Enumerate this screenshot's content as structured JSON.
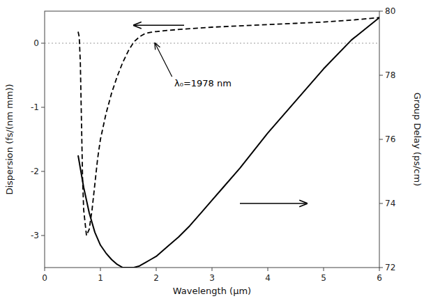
{
  "chart_data": {
    "type": "line",
    "x_label": "Wavelength (μm)",
    "y_label": "Dispersion (fs/(nm mm))",
    "y2_label": "Group Delay (ps/cm)",
    "xlim": [
      0,
      6
    ],
    "ylim": [
      -3.5,
      0.5
    ],
    "y2lim": [
      72,
      80
    ],
    "xticks": [
      0,
      1,
      2,
      3,
      4,
      5,
      6
    ],
    "yticks": [
      -3,
      -2,
      -1,
      0
    ],
    "y2ticks": [
      72,
      74,
      76,
      78,
      80
    ],
    "grid": false,
    "series": [
      {
        "color": "#000000",
        "line_style": "dashed",
        "x": [
          0.6,
          0.62,
          0.64,
          0.66,
          0.68,
          0.7,
          0.75,
          0.8,
          0.85,
          0.9,
          0.95,
          1.0,
          1.1,
          1.2,
          1.3,
          1.4,
          1.5,
          1.6,
          1.7,
          1.8,
          1.9,
          1.978,
          2.0,
          2.2,
          2.5,
          3.0,
          3.5,
          4.0,
          4.5,
          5.0,
          5.5,
          6.0
        ],
        "values": [
          0.18,
          0.1,
          -0.3,
          -1.2,
          -2.1,
          -2.6,
          -3.0,
          -2.9,
          -2.6,
          -2.2,
          -1.8,
          -1.5,
          -1.1,
          -0.78,
          -0.52,
          -0.3,
          -0.12,
          0.02,
          0.1,
          0.15,
          0.17,
          0.18,
          0.18,
          0.2,
          0.22,
          0.25,
          0.27,
          0.29,
          0.31,
          0.33,
          0.36,
          0.4
        ]
      },
      {
        "color": "#000000",
        "line_style": "solid",
        "axis": "y2",
        "x": [
          0.6,
          0.65,
          0.7,
          0.8,
          0.9,
          1.0,
          1.1,
          1.2,
          1.3,
          1.4,
          1.5,
          1.6,
          1.7,
          1.8,
          1.9,
          2.0,
          2.1,
          2.2,
          2.4,
          2.6,
          2.8,
          3.0,
          3.2,
          3.5,
          4.0,
          4.5,
          5.0,
          5.5,
          6.0
        ],
        "values": [
          75.5,
          75.0,
          74.5,
          73.7,
          73.1,
          72.7,
          72.45,
          72.25,
          72.1,
          72.0,
          72.0,
          72.0,
          72.05,
          72.15,
          72.25,
          72.35,
          72.5,
          72.65,
          72.95,
          73.3,
          73.7,
          74.1,
          74.5,
          75.1,
          76.2,
          77.2,
          78.2,
          79.1,
          79.8
        ]
      }
    ],
    "reference_lines": [
      {
        "y": 0,
        "line_style": "dotted",
        "color": "#999999"
      }
    ],
    "annotations": [
      {
        "text": "λ₀=1978 nm",
        "x": 1.978,
        "y": 0.0,
        "from_x": 2.3,
        "from_y": -0.55
      },
      {
        "x": 4.7,
        "y": -2.5,
        "from_x": 3.5,
        "from_y": -2.5
      },
      {
        "x": 1.6,
        "y": 0.28,
        "from_x": 2.5,
        "from_y": 0.28
      }
    ]
  }
}
